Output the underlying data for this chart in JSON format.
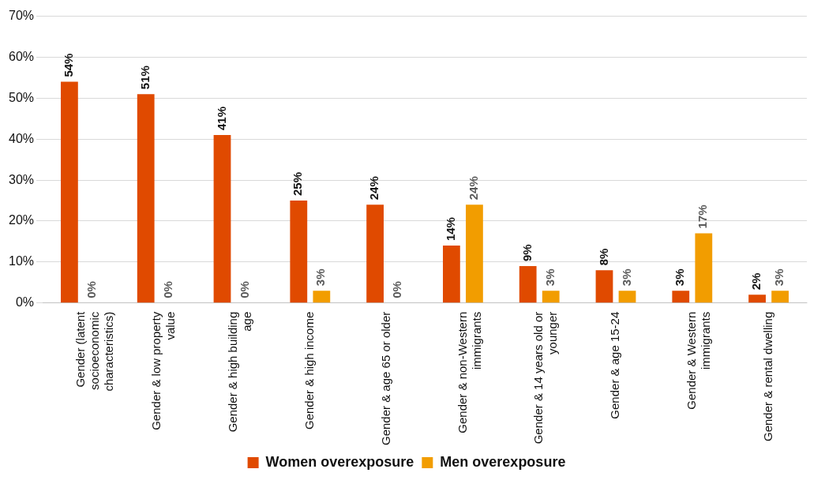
{
  "chart_data": {
    "type": "bar",
    "categories": [
      "Gender (latent socioeconomic characteristics)",
      "Gender & low property value",
      "Gender & high building age",
      "Gender & high income",
      "Gender & age 65 or older",
      "Gender & non-Western immigrants",
      "Gender & 14 years old or younger",
      "Gender & age 15-24",
      "Gender & Western immigrants",
      "Gender & rental dwelling"
    ],
    "series": [
      {
        "name": "Women overexposure",
        "color": "#e04a00",
        "values": [
          54,
          51,
          41,
          25,
          24,
          14,
          9,
          8,
          3,
          2
        ],
        "value_labels": [
          "54%",
          "51%",
          "41%",
          "25%",
          "24%",
          "14%",
          "9%",
          "8%",
          "3%",
          "2%"
        ]
      },
      {
        "name": "Men overexposure",
        "color": "#f29d00",
        "values": [
          0,
          0,
          0,
          3,
          0,
          24,
          3,
          3,
          17,
          3
        ],
        "value_labels": [
          "0%",
          "0%",
          "0%",
          "3%",
          "0%",
          "24%",
          "3%",
          "3%",
          "17%",
          "3%"
        ]
      }
    ],
    "ylim": [
      0,
      70
    ],
    "yticks": [
      {
        "value": 0,
        "label": "0%"
      },
      {
        "value": 10,
        "label": "10%"
      },
      {
        "value": 20,
        "label": "20%"
      },
      {
        "value": 30,
        "label": "30%"
      },
      {
        "value": 40,
        "label": "40%"
      },
      {
        "value": 50,
        "label": "50%"
      },
      {
        "value": 60,
        "label": "60%"
      },
      {
        "value": 70,
        "label": "70%"
      }
    ],
    "grid": "y",
    "legend": "bottom"
  }
}
